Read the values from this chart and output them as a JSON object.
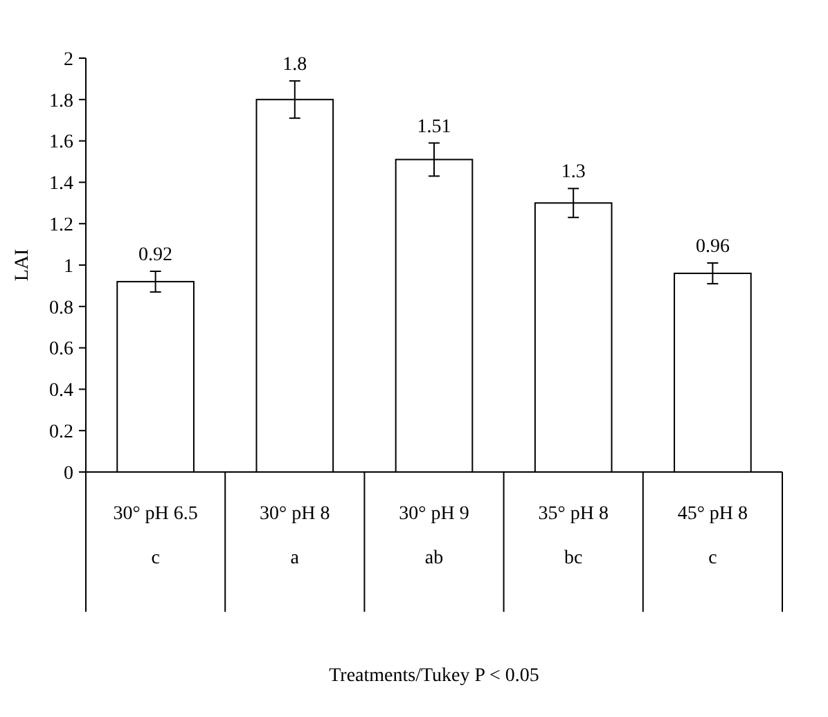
{
  "chart_data": {
    "type": "bar",
    "annotations": [
      "Treatments/Tukey P < 0.05"
    ],
    "ylabel": "LAI",
    "categories": [
      "30° pH 6.5\nc",
      "30° pH 8\na",
      "30° pH 9\nab",
      "35° pH 8\nbc",
      "45° pH 8\nc"
    ],
    "values": [
      0.92,
      1.8,
      1.51,
      1.3,
      0.96
    ],
    "color": "#ffffff",
    "errors": [
      0.05,
      0.09,
      0.08,
      0.07,
      0.05
    ],
    "ylim": [
      0,
      2
    ],
    "yticks": [
      0,
      0.2,
      0.4,
      0.6,
      0.8,
      1,
      1.2,
      1.4,
      1.6,
      1.8,
      2
    ],
    "data_labels": true,
    "grid": false
  }
}
